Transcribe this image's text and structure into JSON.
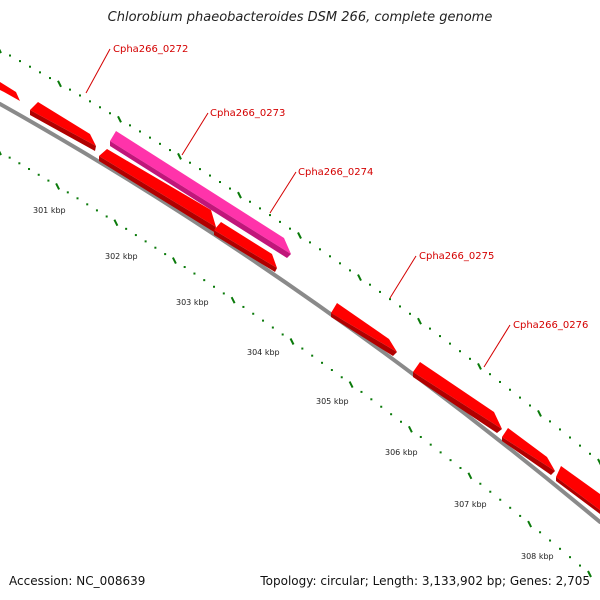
{
  "title": "Chlorobium phaeobacteroides DSM 266, complete genome",
  "footer": {
    "accession": "Accession: NC_008639",
    "stats": "Topology: circular; Length: 3,133,902 bp; Genes: 2,705"
  },
  "colors": {
    "backbone": "#8a8a8a",
    "gene": "#ff0000",
    "gene_dark": "#b00000",
    "highlight": "#ff33aa",
    "highlight_dark": "#c0167a",
    "tick": "#0a7a0a",
    "label": "#d40000"
  },
  "genes": [
    {
      "name": "Cpha266_0272"
    },
    {
      "name": "Cpha266_0273"
    },
    {
      "name": "Cpha266_0274"
    },
    {
      "name": "Cpha266_0275"
    },
    {
      "name": "Cpha266_0276"
    }
  ],
  "ticks": [
    "301 kbp",
    "302 kbp",
    "303 kbp",
    "304 kbp",
    "305 kbp",
    "306 kbp",
    "307 kbp",
    "308 kbp"
  ]
}
